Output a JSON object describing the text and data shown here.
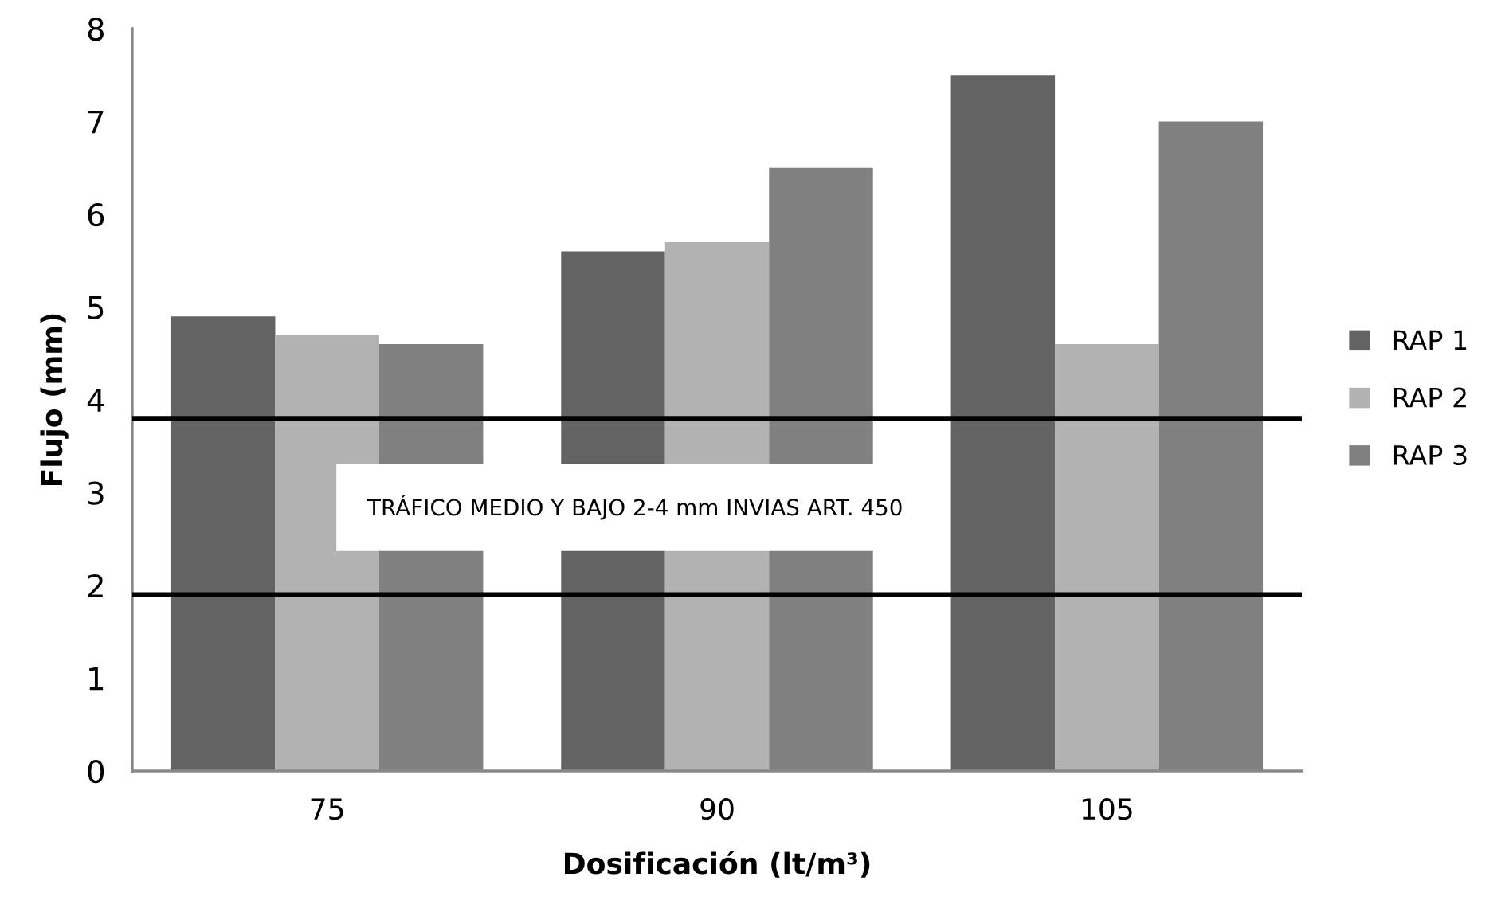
{
  "chart_data": {
    "type": "bar",
    "xlabel": "Dosificación (lt/m³)",
    "ylabel": "Flujo (mm)",
    "categories": [
      "75",
      "90",
      "105"
    ],
    "series": [
      {
        "name": "RAP 1",
        "color": "#636363",
        "values": [
          4.9,
          5.6,
          7.5
        ]
      },
      {
        "name": "RAP 2",
        "color": "#b2b2b2",
        "values": [
          4.7,
          5.7,
          4.6
        ]
      },
      {
        "name": "RAP 3",
        "color": "#808080",
        "values": [
          4.6,
          6.5,
          7.0
        ]
      }
    ],
    "ylim": [
      0,
      8
    ],
    "yticks": [
      0,
      1,
      2,
      3,
      4,
      5,
      6,
      7,
      8
    ],
    "ref_lines": [
      {
        "axis": "y",
        "value": 3.8,
        "color": "#000000"
      },
      {
        "axis": "y",
        "value": 1.9,
        "color": "#000000"
      }
    ],
    "annotations": [
      "TRÁFICO MEDIO Y BAJO 2-4 mm INVIAS ART. 450"
    ],
    "legend": "right",
    "grid": false
  }
}
